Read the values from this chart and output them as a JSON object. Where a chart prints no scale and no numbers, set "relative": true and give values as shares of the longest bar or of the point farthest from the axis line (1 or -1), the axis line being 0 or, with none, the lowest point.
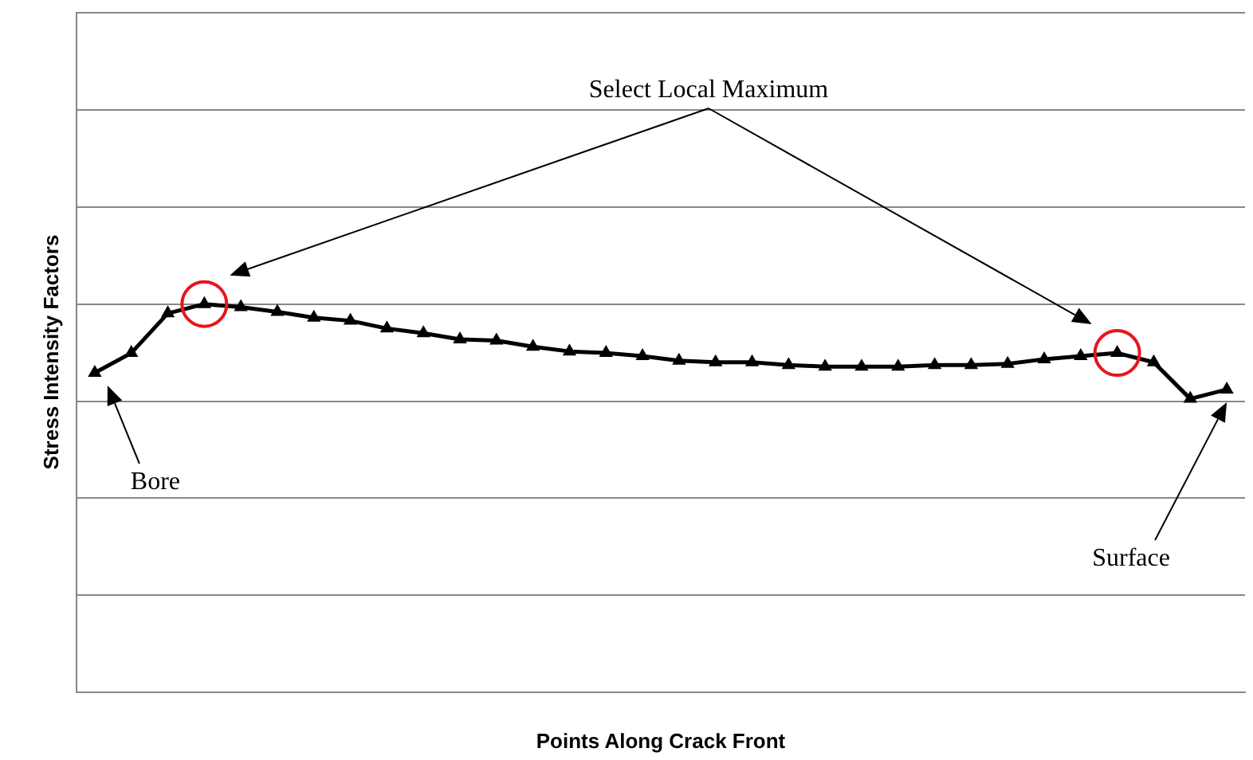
{
  "chart_data": {
    "type": "line",
    "relative": true,
    "xlabel": "Points Along Crack Front",
    "ylabel": "Stress Intensity Factors",
    "categories": [
      null,
      null,
      null,
      null,
      null,
      null,
      null,
      null,
      null,
      null,
      null,
      null,
      null,
      null,
      null,
      null,
      null,
      null,
      null,
      null,
      null,
      null,
      null,
      null,
      null,
      null,
      null,
      null,
      null,
      null,
      null,
      null
    ],
    "series": [
      {
        "color": "#000000",
        "values": [
          0.823,
          0.874,
          0.976,
          1,
          0.992,
          0.98,
          0.965,
          0.957,
          0.937,
          0.925,
          0.909,
          0.906,
          0.89,
          0.878,
          0.874,
          0.866,
          0.854,
          0.85,
          0.85,
          0.843,
          0.839,
          0.839,
          0.839,
          0.843,
          0.843,
          0.846,
          0.858,
          0.866,
          0.874,
          0.85,
          0.756,
          0.78
        ]
      }
    ],
    "marker": "triangle",
    "grid": "y",
    "legend": false,
    "annotations": [
      "Select Local Maximum",
      "Bore",
      "Surface"
    ]
  }
}
